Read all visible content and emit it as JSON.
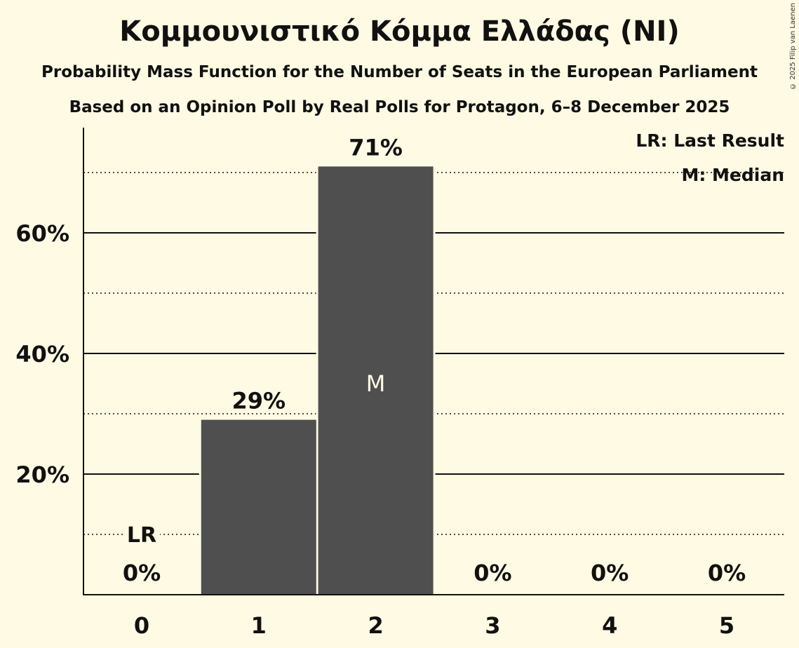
{
  "header": {
    "title": "Κομμουνιστικό Κόμμα Ελλάδας (NI)",
    "subtitle1": "Probability Mass Function for the Number of Seats in the European Parliament",
    "subtitle2": "Based on an Opinion Poll by Real Polls for Protagon, 6–8 December 2025",
    "copyright": "© 2025 Filip van Laenen"
  },
  "legend": {
    "lr": "LR: Last Result",
    "m": "M: Median"
  },
  "colors": {
    "background": "#fefae3",
    "bar": "#4f4f4f",
    "text": "#111111",
    "median_text": "#fefae3"
  },
  "chart_data": {
    "type": "bar",
    "title": "Κομμουνιστικό Κόμμα Ελλάδας (NI)",
    "subtitle": "Probability Mass Function for the Number of Seats in the European Parliament",
    "xlabel": "",
    "ylabel": "",
    "categories": [
      "0",
      "1",
      "2",
      "3",
      "4",
      "5"
    ],
    "values": [
      0,
      29,
      71,
      0,
      0,
      0
    ],
    "value_labels": [
      "0%",
      "29%",
      "71%",
      "0%",
      "0%",
      "0%"
    ],
    "ylim": [
      0,
      77
    ],
    "yticks": [
      20,
      40,
      60
    ],
    "ytick_labels": [
      "20%",
      "40%",
      "60%"
    ],
    "minor_gridlines_dotted": [
      10,
      30,
      50,
      70
    ],
    "major_gridlines_solid": [
      20,
      40,
      60
    ],
    "last_result_category": "0",
    "last_result_label": "LR",
    "median_category": "2",
    "median_label": "M",
    "legend_position": "top-right"
  }
}
